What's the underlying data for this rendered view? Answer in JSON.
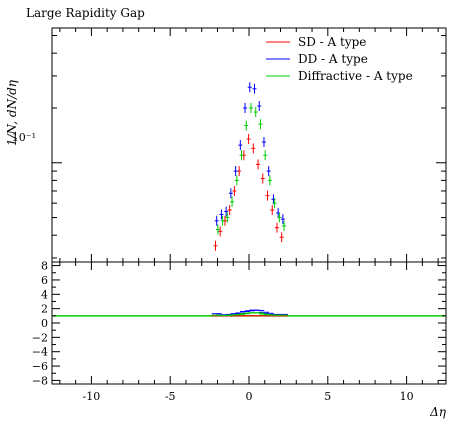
{
  "chart_data": {
    "type": "scatter",
    "title": "Large Rapidity Gap",
    "xlabel": "Δη",
    "ylabel": "1/N, dN/dη",
    "xlim": [
      -12.5,
      12.5
    ],
    "ylim_log": [
      0.0285,
      0.55
    ],
    "y_scale": "log",
    "y_tick_labels": [
      {
        "value": 0.1,
        "label": "10⁻¹"
      }
    ],
    "x_tick_labels": [
      "-10",
      "-5",
      "0",
      "5",
      "10"
    ],
    "x_tick_values": [
      -10,
      -5,
      0,
      5,
      10
    ],
    "legend_position": "top-right",
    "series": [
      {
        "name": "SD - A type",
        "color": "#ff0000",
        "x": [
          -2.05,
          -1.75,
          -1.45,
          -1.15,
          -0.85,
          -0.55,
          -0.25,
          0.05,
          0.35,
          0.65,
          0.95,
          1.25,
          1.55,
          1.85,
          2.15
        ],
        "y": [
          0.035,
          0.042,
          0.048,
          0.055,
          0.07,
          0.09,
          0.11,
          0.135,
          0.12,
          0.098,
          0.082,
          0.066,
          0.055,
          0.044,
          0.039
        ]
      },
      {
        "name": "DD - A type",
        "color": "#0000ff",
        "x": [
          -2.05,
          -1.75,
          -1.45,
          -1.15,
          -0.85,
          -0.55,
          -0.25,
          0.05,
          0.35,
          0.65,
          0.95,
          1.25,
          1.55,
          1.85,
          2.15
        ],
        "y": [
          0.048,
          0.052,
          0.054,
          0.068,
          0.09,
          0.125,
          0.2,
          0.26,
          0.255,
          0.205,
          0.13,
          0.09,
          0.063,
          0.053,
          0.049
        ]
      },
      {
        "name": "Diffractive - A type",
        "color": "#00cc00",
        "x": [
          -2.05,
          -1.75,
          -1.45,
          -1.15,
          -0.85,
          -0.55,
          -0.25,
          0.05,
          0.35,
          0.65,
          0.95,
          1.25,
          1.55,
          1.85,
          2.15
        ],
        "y": [
          0.043,
          0.048,
          0.05,
          0.061,
          0.08,
          0.11,
          0.16,
          0.2,
          0.19,
          0.163,
          0.11,
          0.08,
          0.06,
          0.05,
          0.045
        ]
      }
    ],
    "ratio_panel": {
      "ylim": [
        -8.5,
        8.5
      ],
      "y_tick_labels": [
        "8",
        "6",
        "4",
        "2",
        "0",
        "−2",
        "−4",
        "−6",
        "−8"
      ],
      "y_tick_values": [
        8,
        6,
        4,
        2,
        0,
        -2,
        -4,
        -6,
        -8
      ],
      "reference_line": 1,
      "series": [
        {
          "name": "SD - A type",
          "color": "#ff0000",
          "x": [
            -2.05,
            -1.75,
            -1.45,
            -1.15,
            -0.85,
            -0.55,
            -0.25,
            0.05,
            0.35,
            0.65,
            0.95,
            1.25,
            1.55,
            1.85,
            2.15
          ],
          "y": [
            1,
            1,
            1,
            1,
            1,
            1,
            1,
            1,
            1,
            1,
            1,
            1,
            1,
            1,
            1
          ]
        },
        {
          "name": "DD - A type",
          "color": "#0000ff",
          "x": [
            -2.05,
            -1.75,
            -1.45,
            -1.15,
            -0.85,
            -0.55,
            -0.25,
            0.05,
            0.35,
            0.65,
            0.95,
            1.25,
            1.55,
            1.85,
            2.15
          ],
          "y": [
            1.3,
            1.15,
            1.1,
            1.2,
            1.3,
            1.4,
            1.6,
            1.7,
            1.8,
            1.75,
            1.5,
            1.35,
            1.2,
            1.15,
            1.2
          ]
        },
        {
          "name": "Diffractive - A type",
          "color": "#00cc00",
          "x": [
            -2.05,
            -1.75,
            -1.45,
            -1.15,
            -0.85,
            -0.55,
            -0.25,
            0.05,
            0.35,
            0.65,
            0.95,
            1.25,
            1.55,
            1.85,
            2.15
          ],
          "y": [
            1.1,
            1.05,
            1.05,
            1.1,
            1.15,
            1.2,
            1.3,
            1.4,
            1.45,
            1.4,
            1.25,
            1.15,
            1.1,
            1.08,
            1.1
          ]
        }
      ]
    }
  }
}
